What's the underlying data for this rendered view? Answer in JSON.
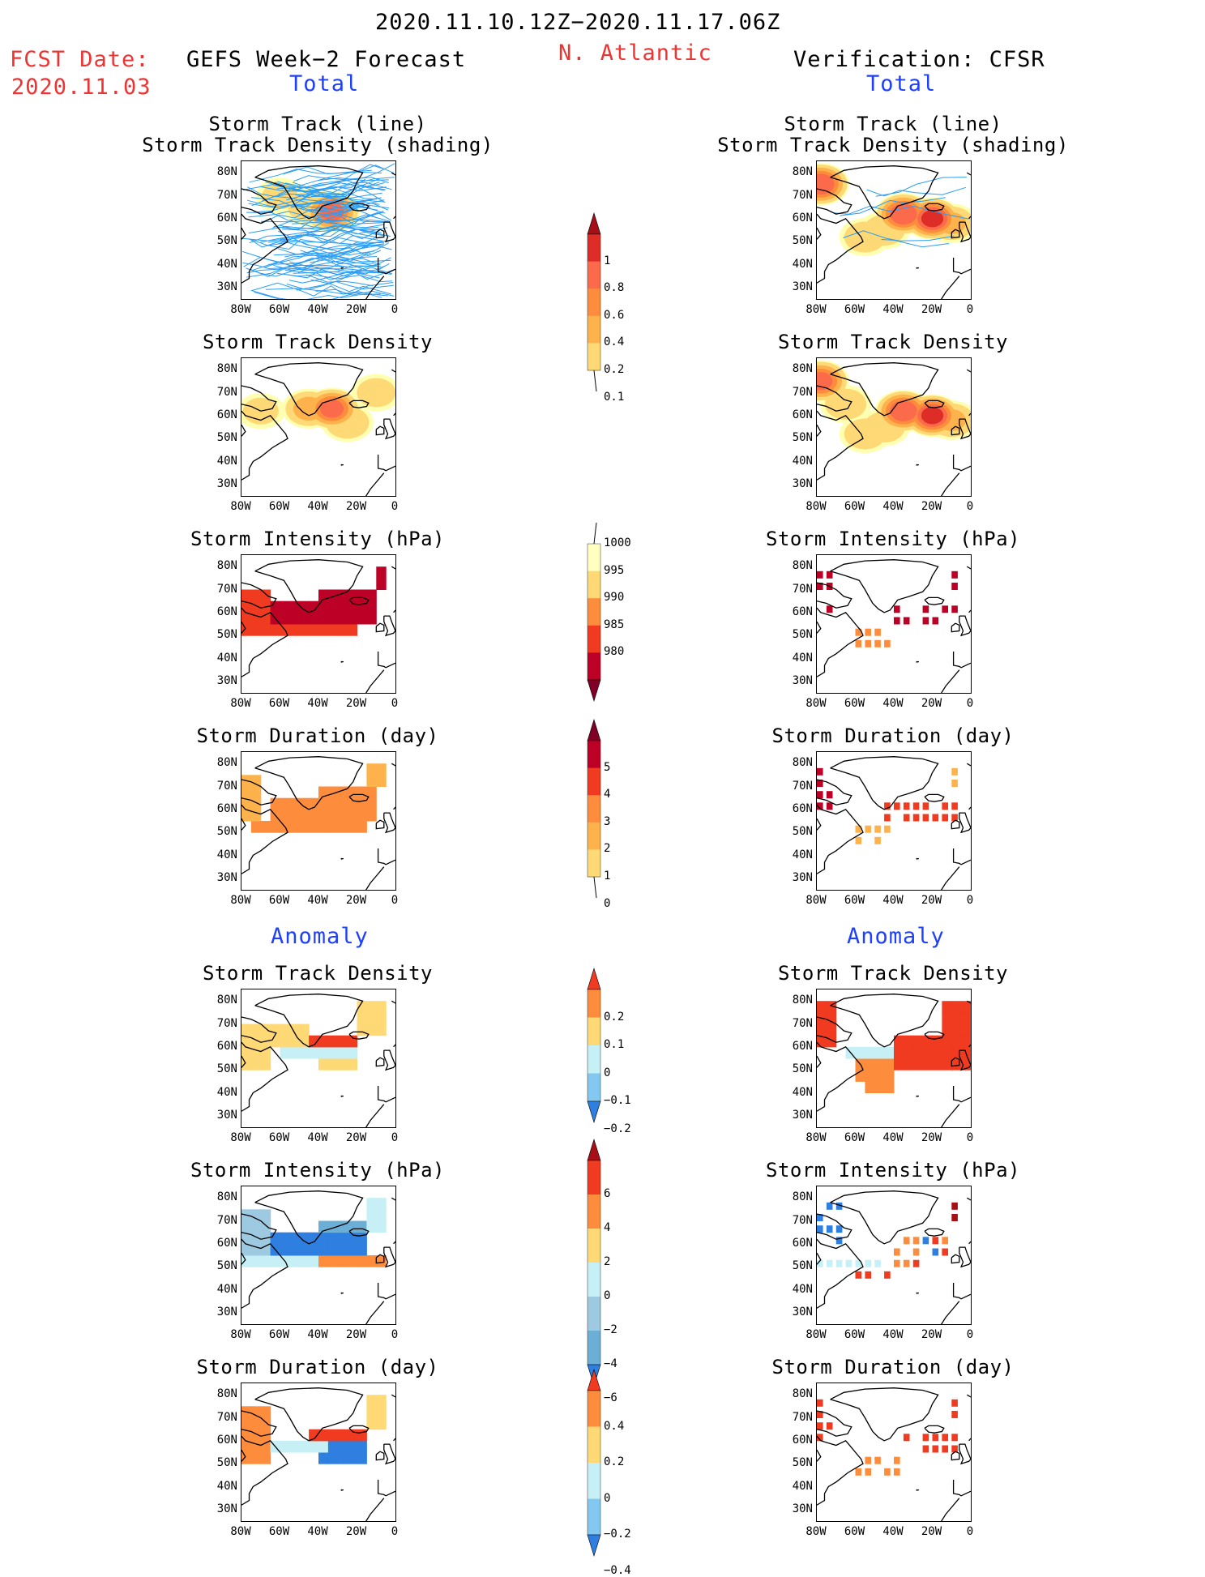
{
  "header": {
    "period": "2020.11.10.12Z−2020.11.17.06Z",
    "fcst_label": "FCST Date:",
    "fcst_date": "2020.11.03",
    "model_title": "GEFS Week−2 Forecast",
    "region": "N. Atlantic",
    "verification_title": "Verification: CFSR",
    "total_label_left": "Total",
    "total_label_right": "Total",
    "anomaly_label_left": "Anomaly",
    "anomaly_label_right": "Anomaly"
  },
  "axes": {
    "lat_ticks": [
      "80N",
      "70N",
      "60N",
      "50N",
      "40N",
      "30N"
    ],
    "lon_ticks": [
      "80W",
      "60W",
      "40W",
      "20W",
      "0"
    ]
  },
  "panel_titles": {
    "track_line": "Storm Track (line)",
    "track_shading": "Storm Track Density (shading)",
    "density": "Storm Track Density",
    "intensity": "Storm Intensity (hPa)",
    "duration": "Storm Duration (day)"
  },
  "colorbars": {
    "density": {
      "labels": [
        "1",
        "0.8",
        "0.6",
        "0.4",
        "0.2",
        "0.1"
      ],
      "colors": [
        "#a50f15",
        "#de2d26",
        "#fb6a4a",
        "#fd8d3c",
        "#feb24c",
        "#fed976",
        "#ffffb2"
      ]
    },
    "intensity": {
      "labels": [
        "1000",
        "995",
        "990",
        "985",
        "980"
      ],
      "colors": [
        "#ffffc0",
        "#fed976",
        "#fd8d3c",
        "#f03b20",
        "#bd0026",
        "#800026"
      ]
    },
    "duration": {
      "labels": [
        "5",
        "4",
        "3",
        "2",
        "1",
        "0"
      ],
      "colors": [
        "#800026",
        "#bd0026",
        "#f03b20",
        "#fd8d3c",
        "#feb24c",
        "#fed976",
        "#ffffc0"
      ]
    },
    "anom_density": {
      "labels": [
        "0.2",
        "0.1",
        "0",
        "−0.1",
        "−0.2"
      ],
      "colors": [
        "#f03b20",
        "#fd8d3c",
        "#fed976",
        "#c6f0f5",
        "#82c8f0",
        "#2f7fe0"
      ]
    },
    "anom_intensity": {
      "labels": [
        "6",
        "4",
        "2",
        "0",
        "−2",
        "−4",
        "−6"
      ],
      "colors": [
        "#a50f15",
        "#f03b20",
        "#fd8d3c",
        "#fed976",
        "#c6f0f5",
        "#9ecae1",
        "#6baed6",
        "#2f7fe0"
      ]
    },
    "anom_duration": {
      "labels": [
        "0.4",
        "0.2",
        "0",
        "−0.2",
        "−0.4"
      ],
      "colors": [
        "#f03b20",
        "#fd8d3c",
        "#fed976",
        "#c6f0f5",
        "#82c8f0",
        "#2f7fe0"
      ]
    }
  },
  "chart_data": [
    {
      "type": "heatmap",
      "title": "Storm Track (line) / Storm Track Density (shading)",
      "source": "GEFS Week-2 Forecast",
      "xlim": [
        -80,
        0
      ],
      "ylim": [
        25,
        85
      ],
      "blobs": [
        {
          "lon": -33,
          "lat": 63,
          "value": 0.8
        },
        {
          "lon": -45,
          "lat": 65,
          "value": 0.3
        },
        {
          "lon": -60,
          "lat": 70,
          "value": 0.2
        }
      ]
    },
    {
      "type": "heatmap",
      "title": "Storm Track (line) / Storm Track Density (shading)",
      "source": "CFSR",
      "xlim": [
        -80,
        0
      ],
      "ylim": [
        25,
        85
      ],
      "blobs": [
        {
          "lon": -35,
          "lat": 62,
          "value": 0.9
        },
        {
          "lon": -20,
          "lat": 60,
          "value": 1.0
        },
        {
          "lon": -78,
          "lat": 75,
          "value": 0.9
        },
        {
          "lon": -10,
          "lat": 58,
          "value": 0.4
        },
        {
          "lon": -55,
          "lat": 52,
          "value": 0.3
        }
      ]
    },
    {
      "type": "heatmap",
      "title": "Storm Track Density",
      "source": "GEFS Week-2 Forecast",
      "xlim": [
        -80,
        0
      ],
      "ylim": [
        25,
        85
      ],
      "blobs": [
        {
          "lon": -33,
          "lat": 63,
          "value": 0.8
        },
        {
          "lon": -45,
          "lat": 63,
          "value": 0.4
        },
        {
          "lon": -25,
          "lat": 58,
          "value": 0.3
        },
        {
          "lon": -70,
          "lat": 62,
          "value": 0.2
        }
      ]
    },
    {
      "type": "heatmap",
      "title": "Storm Track Density",
      "source": "CFSR",
      "xlim": [
        -80,
        0
      ],
      "ylim": [
        25,
        85
      ],
      "blobs": [
        {
          "lon": -35,
          "lat": 62,
          "value": 0.9
        },
        {
          "lon": -20,
          "lat": 60,
          "value": 1.0
        },
        {
          "lon": -78,
          "lat": 75,
          "value": 0.8
        },
        {
          "lon": -10,
          "lat": 58,
          "value": 0.4
        },
        {
          "lon": -55,
          "lat": 52,
          "value": 0.3
        }
      ]
    },
    {
      "type": "heatmap",
      "title": "Storm Intensity (hPa)",
      "source": "GEFS Week-2 Forecast",
      "xlim": [
        -80,
        0
      ],
      "ylim": [
        25,
        85
      ]
    },
    {
      "type": "heatmap",
      "title": "Storm Intensity (hPa)",
      "source": "CFSR",
      "xlim": [
        -80,
        0
      ],
      "ylim": [
        25,
        85
      ]
    },
    {
      "type": "heatmap",
      "title": "Storm Duration (day)",
      "source": "GEFS Week-2 Forecast",
      "xlim": [
        -80,
        0
      ],
      "ylim": [
        25,
        85
      ]
    },
    {
      "type": "heatmap",
      "title": "Storm Duration (day)",
      "source": "CFSR",
      "xlim": [
        -80,
        0
      ],
      "ylim": [
        25,
        85
      ]
    },
    {
      "type": "heatmap",
      "title": "Storm Track Density (Anomaly)",
      "source": "GEFS Week-2 Forecast",
      "xlim": [
        -80,
        0
      ],
      "ylim": [
        25,
        85
      ]
    },
    {
      "type": "heatmap",
      "title": "Storm Track Density (Anomaly)",
      "source": "CFSR",
      "xlim": [
        -80,
        0
      ],
      "ylim": [
        25,
        85
      ]
    },
    {
      "type": "heatmap",
      "title": "Storm Intensity (hPa) (Anomaly)",
      "source": "GEFS Week-2 Forecast",
      "xlim": [
        -80,
        0
      ],
      "ylim": [
        25,
        85
      ]
    },
    {
      "type": "heatmap",
      "title": "Storm Intensity (hPa) (Anomaly)",
      "source": "CFSR",
      "xlim": [
        -80,
        0
      ],
      "ylim": [
        25,
        85
      ]
    },
    {
      "type": "heatmap",
      "title": "Storm Duration (day) (Anomaly)",
      "source": "GEFS Week-2 Forecast",
      "xlim": [
        -80,
        0
      ],
      "ylim": [
        25,
        85
      ]
    },
    {
      "type": "heatmap",
      "title": "Storm Duration (day) (Anomaly)",
      "source": "CFSR",
      "xlim": [
        -80,
        0
      ],
      "ylim": [
        25,
        85
      ]
    }
  ]
}
